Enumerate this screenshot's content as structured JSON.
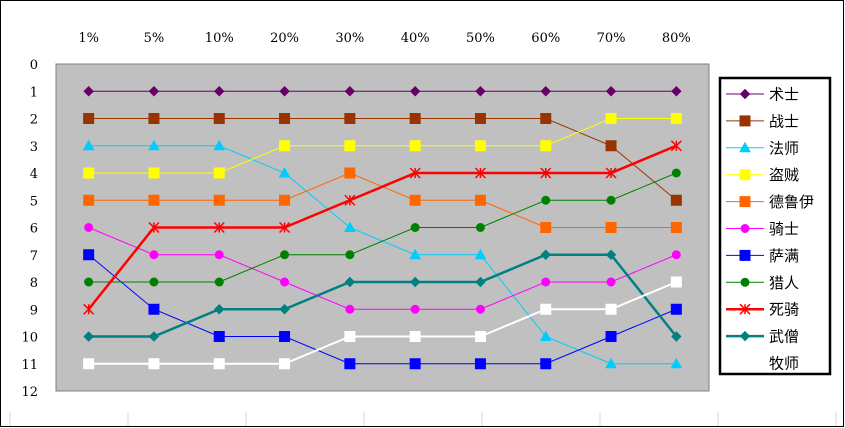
{
  "chart_data": {
    "type": "line",
    "title": "",
    "xlabel": "",
    "ylabel": "",
    "categories": [
      "1%",
      "5%",
      "10%",
      "20%",
      "30%",
      "40%",
      "50%",
      "60%",
      "70%",
      "80%"
    ],
    "y_ticks": [
      "0",
      "1",
      "2",
      "3",
      "4",
      "5",
      "6",
      "7",
      "8",
      "9",
      "10",
      "11",
      "12"
    ],
    "ylim": [
      0,
      12
    ],
    "y_inverted": true,
    "x_axis_position": "top",
    "grid": false,
    "legend_position": "right",
    "plot_background": "#c0c0c0",
    "series": [
      {
        "name": "术士",
        "values": [
          1,
          1,
          1,
          1,
          1,
          1,
          1,
          1,
          1,
          1
        ],
        "color": "#660066",
        "marker": "diamond",
        "width": 1
      },
      {
        "name": "战士",
        "values": [
          2,
          2,
          2,
          2,
          2,
          2,
          2,
          2,
          3,
          5
        ],
        "color": "#993300",
        "marker": "square",
        "width": 1
      },
      {
        "name": "法师",
        "values": [
          3,
          3,
          3,
          4,
          6,
          7,
          7,
          10,
          11,
          11
        ],
        "color": "#00ccff",
        "marker": "triangle",
        "width": 1
      },
      {
        "name": "盗贼",
        "values": [
          4,
          4,
          4,
          3,
          3,
          3,
          3,
          3,
          2,
          2
        ],
        "color": "#ffff00",
        "marker": "square",
        "width": 1
      },
      {
        "name": "德鲁伊",
        "values": [
          5,
          5,
          5,
          5,
          4,
          5,
          5,
          6,
          6,
          6
        ],
        "color": "#ff6600",
        "marker": "square",
        "width": 1
      },
      {
        "name": "骑士",
        "values": [
          6,
          7,
          7,
          8,
          9,
          9,
          9,
          8,
          8,
          7
        ],
        "color": "#ff00ff",
        "marker": "circle",
        "width": 1
      },
      {
        "name": "萨满",
        "values": [
          7,
          9,
          10,
          10,
          11,
          11,
          11,
          11,
          10,
          9
        ],
        "color": "#0000ff",
        "marker": "square",
        "width": 1
      },
      {
        "name": "猎人",
        "values": [
          8,
          8,
          8,
          7,
          7,
          6,
          6,
          5,
          5,
          4
        ],
        "color": "#008000",
        "marker": "circle",
        "width": 1
      },
      {
        "name": "死骑",
        "values": [
          9,
          6,
          6,
          6,
          5,
          4,
          4,
          4,
          4,
          3
        ],
        "color": "#ff0000",
        "marker": "star",
        "width": 2.5
      },
      {
        "name": "武僧",
        "values": [
          10,
          10,
          9,
          9,
          8,
          8,
          8,
          7,
          7,
          10
        ],
        "color": "#008080",
        "marker": "diamond",
        "width": 2.5
      },
      {
        "name": "牧师",
        "values": [
          11,
          11,
          11,
          11,
          10,
          10,
          10,
          9,
          9,
          8
        ],
        "color": "#ffffff",
        "marker": "square",
        "width": 2
      }
    ]
  }
}
